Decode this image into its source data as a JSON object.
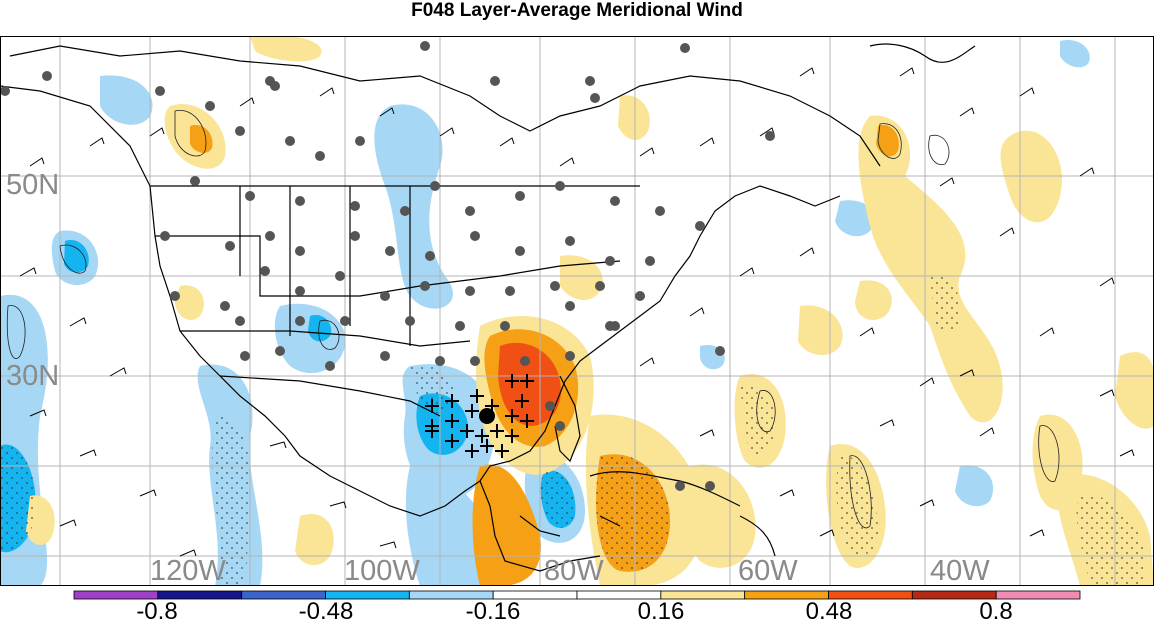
{
  "title": "F048 Layer-Average Meridional Wind",
  "latitude_labels": [
    "50N",
    "30N"
  ],
  "longitude_labels": [
    "120W",
    "100W",
    "80W",
    "60W",
    "40W"
  ],
  "colorbar": {
    "tick_labels": [
      "-0.8",
      "-0.48",
      "-0.16",
      "0.16",
      "0.48",
      "0.8"
    ],
    "colors": [
      "#a040c8",
      "#15158c",
      "#3b64c8",
      "#14b4f0",
      "#a6d8f6",
      "#ffffff",
      "#ffffff",
      "#fae496",
      "#f5a015",
      "#f05014",
      "#b42814",
      "#f08cb4"
    ]
  },
  "legend_colors": {
    "negative_light": "#a6d8f6",
    "negative_mid": "#14b4f0",
    "positive_light": "#fae496",
    "positive_mid": "#f5a015",
    "positive_high": "#f05014"
  }
}
